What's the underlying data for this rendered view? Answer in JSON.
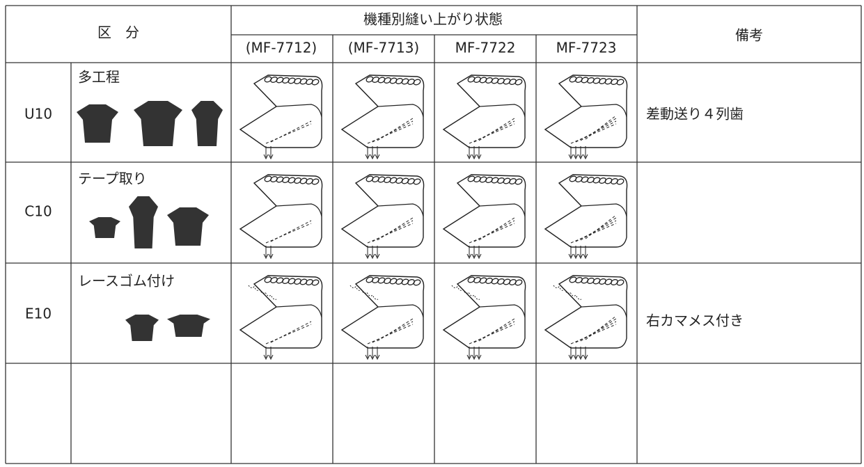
{
  "table": {
    "header": {
      "category": "区　分",
      "models_title": "機種別縫い上がり状態",
      "remarks": "備考"
    },
    "models": [
      "(MF-7712)",
      "(MF-7713)",
      "MF-7722",
      "MF-7723"
    ],
    "rows": [
      {
        "code": "U10",
        "category": "多工程",
        "remark": "差動送り４列歯"
      },
      {
        "code": "C10",
        "category": "テープ取り"
      },
      {
        "code": "E10",
        "category": "レースゴム付け",
        "remark": "右カマメス付き"
      }
    ]
  }
}
